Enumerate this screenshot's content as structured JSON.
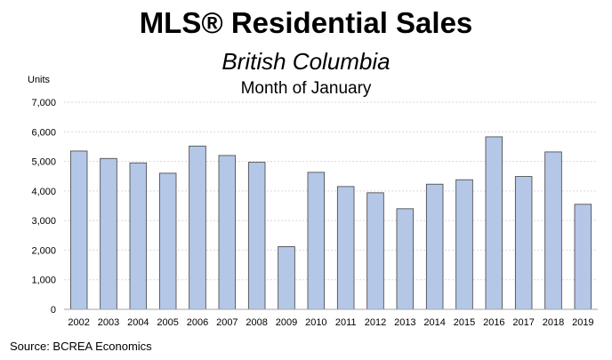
{
  "chart_data": {
    "type": "bar",
    "title": "MLS® Residential Sales",
    "subtitle": "British Columbia",
    "subsubtitle": "Month of January",
    "ylabel": "Units",
    "xlabel": "",
    "source": "Source: BCREA Economics",
    "categories": [
      "2002",
      "2003",
      "2004",
      "2005",
      "2006",
      "2007",
      "2008",
      "2009",
      "2010",
      "2011",
      "2012",
      "2013",
      "2014",
      "2015",
      "2016",
      "2017",
      "2018",
      "2019"
    ],
    "values": [
      5350,
      5100,
      4950,
      4600,
      5520,
      5200,
      4970,
      2120,
      4630,
      4150,
      3940,
      3400,
      4230,
      4380,
      5830,
      4490,
      5320,
      3550
    ],
    "ylim": [
      0,
      7000
    ],
    "yticks": [
      0,
      1000,
      2000,
      3000,
      4000,
      5000,
      6000,
      7000
    ],
    "ytick_labels": [
      "0",
      "1,000",
      "2,000",
      "3,000",
      "4,000",
      "5,000",
      "6,000",
      "7,000"
    ],
    "grid": true,
    "bar_color": "#b4c7e7",
    "bar_edge_color": "#404040",
    "grid_color": "#d9d9d9",
    "axis_color": "#a6a6a6"
  }
}
